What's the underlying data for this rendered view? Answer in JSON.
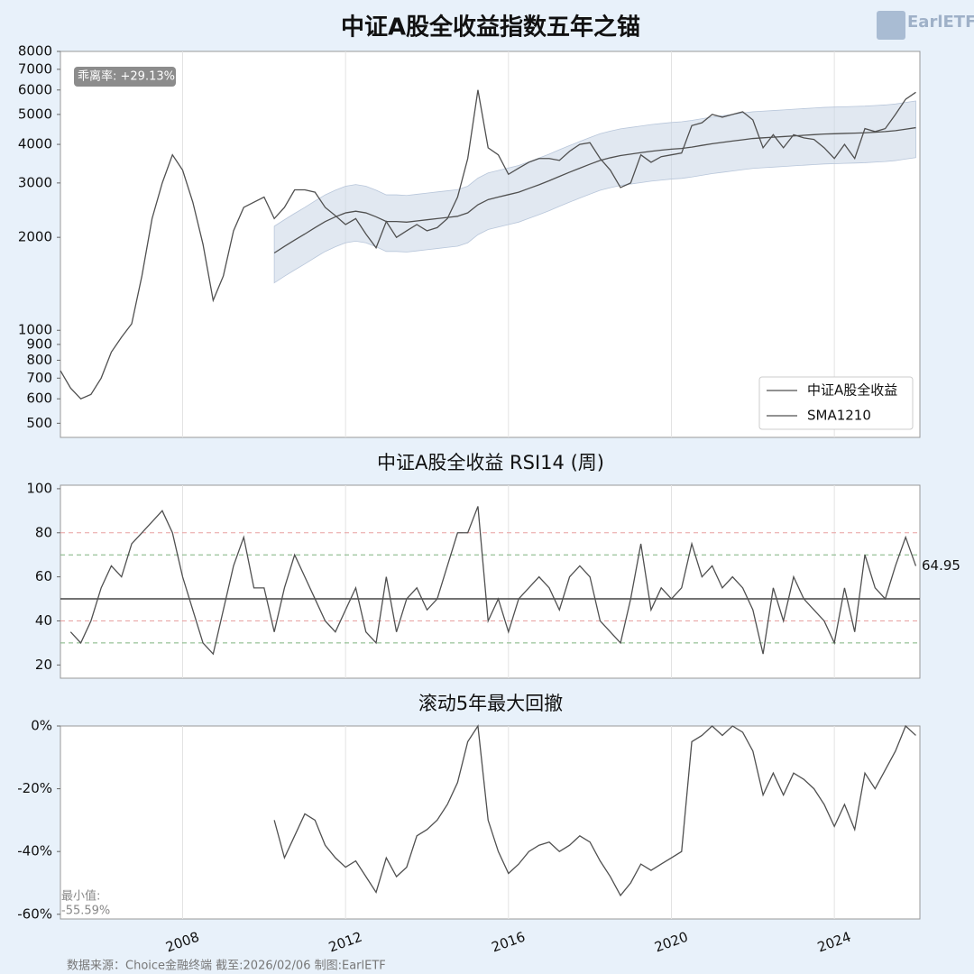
{
  "title": "中证A股全收益指数五年之锚",
  "logo": "EarlETF",
  "source": "数据来源：Choice金融终端 截至:2026/02/06 制图:EarlETF",
  "chart_data": [
    {
      "type": "line",
      "x": [
        2005,
        2005.25,
        2005.5,
        2005.75,
        2006,
        2006.25,
        2006.5,
        2006.75,
        2007,
        2007.25,
        2007.5,
        2007.75,
        2008,
        2008.25,
        2008.5,
        2008.75,
        2009,
        2009.25,
        2009.5,
        2009.75,
        2010,
        2010.25,
        2010.5,
        2010.75,
        2011,
        2011.25,
        2011.5,
        2011.75,
        2012,
        2012.25,
        2012.5,
        2012.75,
        2013,
        2013.25,
        2013.5,
        2013.75,
        2014,
        2014.25,
        2014.5,
        2014.75,
        2015,
        2015.25,
        2015.5,
        2015.75,
        2016,
        2016.25,
        2016.5,
        2016.75,
        2017,
        2017.25,
        2017.5,
        2017.75,
        2018,
        2018.25,
        2018.5,
        2018.75,
        2019,
        2019.25,
        2019.5,
        2019.75,
        2020,
        2020.25,
        2020.5,
        2020.75,
        2021,
        2021.25,
        2021.5,
        2021.75,
        2022,
        2022.25,
        2022.5,
        2022.75,
        2023,
        2023.25,
        2023.5,
        2023.75,
        2024,
        2024.25,
        2024.5,
        2024.75,
        2025,
        2025.25,
        2025.5,
        2025.75,
        2026
      ],
      "series": [
        {
          "name": "中证A股全收益",
          "color": "#505050",
          "values": [
            740,
            650,
            600,
            620,
            700,
            850,
            950,
            1050,
            1500,
            2300,
            3000,
            3700,
            3300,
            2600,
            1900,
            1250,
            1500,
            2100,
            2500,
            2600,
            2700,
            2300,
            2500,
            2850,
            2850,
            2800,
            2500,
            2350,
            2200,
            2300,
            2050,
            1850,
            2250,
            2000,
            2100,
            2200,
            2100,
            2150,
            2300,
            2700,
            3600,
            6000,
            3900,
            3700,
            3200,
            3350,
            3500,
            3600,
            3600,
            3550,
            3800,
            4000,
            4050,
            3600,
            3300,
            2900,
            3000,
            3700,
            3500,
            3650,
            3700,
            3750,
            4600,
            4700,
            5000,
            4900,
            5000,
            5100,
            4800,
            3900,
            4300,
            3900,
            4300,
            4200,
            4150,
            3900,
            3600,
            4000,
            3600,
            4500,
            4400,
            4500,
            5000,
            5600,
            5900
          ]
        },
        {
          "name": "SMA1210",
          "color": "#505050",
          "values": [
            null,
            null,
            null,
            null,
            null,
            null,
            null,
            null,
            null,
            null,
            null,
            null,
            null,
            null,
            null,
            null,
            null,
            null,
            null,
            null,
            null,
            1780,
            1870,
            1960,
            2050,
            2150,
            2250,
            2330,
            2400,
            2430,
            2400,
            2330,
            2250,
            2250,
            2240,
            2260,
            2280,
            2300,
            2320,
            2340,
            2400,
            2550,
            2650,
            2700,
            2750,
            2800,
            2880,
            2960,
            3050,
            3150,
            3250,
            3350,
            3450,
            3550,
            3620,
            3680,
            3720,
            3760,
            3800,
            3830,
            3860,
            3880,
            3920,
            3970,
            4020,
            4060,
            4100,
            4140,
            4180,
            4200,
            4220,
            4240,
            4260,
            4280,
            4300,
            4320,
            4330,
            4340,
            4350,
            4360,
            4380,
            4400,
            4430,
            4480,
            4530
          ]
        }
      ],
      "band": {
        "color": "#c9d5e6",
        "upper": [
          null,
          null,
          null,
          null,
          null,
          null,
          null,
          null,
          null,
          null,
          null,
          null,
          null,
          null,
          null,
          null,
          null,
          null,
          null,
          null,
          null,
          2172,
          2281,
          2391,
          2501,
          2623,
          2745,
          2843,
          2928,
          2965,
          2928,
          2843,
          2745,
          2745,
          2733,
          2757,
          2782,
          2806,
          2830,
          2855,
          2928,
          3111,
          3233,
          3294,
          3355,
          3416,
          3514,
          3611,
          3721,
          3843,
          3965,
          4087,
          4209,
          4331,
          4416,
          4490,
          4538,
          4587,
          4636,
          4673,
          4709,
          4734,
          4782,
          4843,
          4904,
          4953,
          5002,
          5051,
          5100,
          5124,
          5148,
          5173,
          5197,
          5222,
          5246,
          5270,
          5283,
          5295,
          5307,
          5319,
          5344,
          5368,
          5405,
          5466,
          5527
        ],
        "lower": [
          null,
          null,
          null,
          null,
          null,
          null,
          null,
          null,
          null,
          null,
          null,
          null,
          null,
          null,
          null,
          null,
          null,
          null,
          null,
          null,
          null,
          1424,
          1496,
          1568,
          1640,
          1720,
          1800,
          1864,
          1920,
          1944,
          1920,
          1864,
          1800,
          1800,
          1792,
          1808,
          1824,
          1840,
          1856,
          1872,
          1920,
          2040,
          2120,
          2160,
          2200,
          2240,
          2304,
          2368,
          2440,
          2520,
          2600,
          2680,
          2760,
          2840,
          2896,
          2944,
          2976,
          3008,
          3040,
          3064,
          3088,
          3104,
          3136,
          3176,
          3216,
          3248,
          3280,
          3312,
          3344,
          3360,
          3376,
          3392,
          3408,
          3424,
          3440,
          3456,
          3464,
          3472,
          3480,
          3488,
          3504,
          3520,
          3544,
          3584,
          3624
        ]
      },
      "log_scale": true,
      "xlim": [
        2005,
        2026.1
      ],
      "xticks": [
        2008,
        2012,
        2016,
        2020,
        2024
      ],
      "ylim": [
        450,
        8000
      ],
      "yticks": [
        500,
        600,
        700,
        800,
        900,
        1000,
        2000,
        3000,
        4000,
        5000,
        6000,
        7000,
        8000
      ],
      "grid": true,
      "legend": "lower right",
      "annotation": "乖离率: +29.13%"
    },
    {
      "type": "line",
      "title": "中证A股全收益 RSI14 (周)",
      "x": [
        2005,
        2005.25,
        2005.5,
        2005.75,
        2006,
        2006.25,
        2006.5,
        2006.75,
        2007,
        2007.25,
        2007.5,
        2007.75,
        2008,
        2008.25,
        2008.5,
        2008.75,
        2009,
        2009.25,
        2009.5,
        2009.75,
        2010,
        2010.25,
        2010.5,
        2010.75,
        2011,
        2011.25,
        2011.5,
        2011.75,
        2012,
        2012.25,
        2012.5,
        2012.75,
        2013,
        2013.25,
        2013.5,
        2013.75,
        2014,
        2014.25,
        2014.5,
        2014.75,
        2015,
        2015.25,
        2015.5,
        2015.75,
        2016,
        2016.25,
        2016.5,
        2016.75,
        2017,
        2017.25,
        2017.5,
        2017.75,
        2018,
        2018.25,
        2018.5,
        2018.75,
        2019,
        2019.25,
        2019.5,
        2019.75,
        2020,
        2020.25,
        2020.5,
        2020.75,
        2021,
        2021.25,
        2021.5,
        2021.75,
        2022,
        2022.25,
        2022.5,
        2022.75,
        2023,
        2023.25,
        2023.5,
        2023.75,
        2024,
        2024.25,
        2024.5,
        2024.75,
        2025,
        2025.25,
        2025.5,
        2025.75,
        2026
      ],
      "series": [
        {
          "color": "#505050",
          "values": [
            null,
            35,
            30,
            40,
            55,
            65,
            60,
            75,
            80,
            85,
            90,
            80,
            60,
            45,
            30,
            25,
            45,
            65,
            78,
            55,
            55,
            35,
            55,
            70,
            60,
            50,
            40,
            35,
            45,
            55,
            35,
            30,
            60,
            35,
            50,
            55,
            45,
            50,
            65,
            80,
            80,
            92,
            40,
            50,
            35,
            50,
            55,
            60,
            55,
            45,
            60,
            65,
            60,
            40,
            35,
            30,
            50,
            75,
            45,
            55,
            50,
            55,
            75,
            60,
            65,
            55,
            60,
            55,
            45,
            25,
            55,
            40,
            60,
            50,
            45,
            40,
            30,
            55,
            35,
            70,
            55,
            50,
            65,
            78,
            64.95
          ]
        }
      ],
      "show_last_value": true,
      "hlines": [
        {
          "value": 80,
          "color": "#e8a0a0",
          "dashed": true
        },
        {
          "value": 70,
          "color": "#7fb27f",
          "dashed": true
        },
        {
          "value": 50,
          "color": "#444444",
          "dashed": false
        },
        {
          "value": 40,
          "color": "#e8a0a0",
          "dashed": true
        },
        {
          "value": 30,
          "color": "#7fb27f",
          "dashed": true
        }
      ],
      "xlim": [
        2005,
        2026.1
      ],
      "xticks": [
        2008,
        2012,
        2016,
        2020,
        2024
      ],
      "ylim": [
        14,
        101.6
      ],
      "yticks": [
        20,
        40,
        60,
        80,
        100
      ],
      "grid": true
    },
    {
      "type": "line",
      "title": "滚动5年最大回撤",
      "x": [
        2005,
        2005.25,
        2005.5,
        2005.75,
        2006,
        2006.25,
        2006.5,
        2006.75,
        2007,
        2007.25,
        2007.5,
        2007.75,
        2008,
        2008.25,
        2008.5,
        2008.75,
        2009,
        2009.25,
        2009.5,
        2009.75,
        2010,
        2010.25,
        2010.5,
        2010.75,
        2011,
        2011.25,
        2011.5,
        2011.75,
        2012,
        2012.25,
        2012.5,
        2012.75,
        2013,
        2013.25,
        2013.5,
        2013.75,
        2014,
        2014.25,
        2014.5,
        2014.75,
        2015,
        2015.25,
        2015.5,
        2015.75,
        2016,
        2016.25,
        2016.5,
        2016.75,
        2017,
        2017.25,
        2017.5,
        2017.75,
        2018,
        2018.25,
        2018.5,
        2018.75,
        2019,
        2019.25,
        2019.5,
        2019.75,
        2020,
        2020.25,
        2020.5,
        2020.75,
        2021,
        2021.25,
        2021.5,
        2021.75,
        2022,
        2022.25,
        2022.5,
        2022.75,
        2023,
        2023.25,
        2023.5,
        2023.75,
        2024,
        2024.25,
        2024.5,
        2024.75,
        2025,
        2025.25,
        2025.5,
        2025.75,
        2026
      ],
      "series": [
        {
          "color": "#505050",
          "values": [
            null,
            null,
            null,
            null,
            null,
            null,
            null,
            null,
            null,
            null,
            null,
            null,
            null,
            null,
            null,
            null,
            null,
            null,
            null,
            null,
            null,
            -30,
            -42,
            -35,
            -28,
            -30,
            -38,
            -42,
            -45,
            -43,
            -48,
            -53,
            -42,
            -48,
            -45,
            -35,
            -33,
            -30,
            -25,
            -18,
            -5,
            0,
            -30,
            -40,
            -47,
            -44,
            -40,
            -38,
            -37,
            -40,
            -38,
            -35,
            -37,
            -43,
            -48,
            -54,
            -50,
            -44,
            -46,
            -44,
            -42,
            -40,
            -5,
            -3,
            0,
            -3,
            0,
            -2,
            -8,
            -22,
            -15,
            -22,
            -15,
            -17,
            -20,
            -25,
            -32,
            -25,
            -33,
            -15,
            -20,
            -14,
            -8,
            0,
            -3
          ]
        }
      ],
      "min_annotation": {
        "title": "最小值:",
        "value": -55.59,
        "label": "-55.59%"
      },
      "xlim": [
        2005,
        2026.1
      ],
      "xticks": [
        {
          "value": 2008,
          "label": "2008"
        },
        {
          "value": 2012,
          "label": "2012"
        },
        {
          "value": 2016,
          "label": "2016"
        },
        {
          "value": 2020,
          "label": "2020"
        },
        {
          "value": 2024,
          "label": "2024"
        }
      ],
      "ylim": [
        -61.5,
        0
      ],
      "yticks": [
        {
          "value": -60,
          "label": "-60%"
        },
        {
          "value": -40,
          "label": "-40%"
        },
        {
          "value": -20,
          "label": "-20%"
        },
        {
          "value": 0,
          "label": "0%"
        }
      ],
      "grid": true
    }
  ]
}
